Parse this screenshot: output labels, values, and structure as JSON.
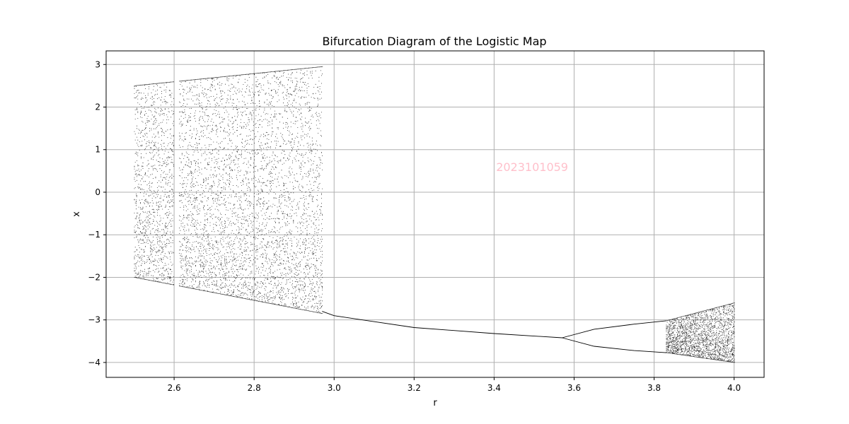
{
  "chart_data": {
    "type": "scatter",
    "title": "Bifurcation Diagram of the Logistic Map",
    "xlabel": "r",
    "ylabel": "x",
    "xlim": [
      2.43,
      4.075
    ],
    "ylim": [
      -4.35,
      3.32
    ],
    "grid": true,
    "x_ticks": [
      2.6,
      2.8,
      3.0,
      3.2,
      3.4,
      3.6,
      3.8,
      4.0
    ],
    "x_tick_labels": [
      "2.6",
      "2.8",
      "3.0",
      "3.2",
      "3.4",
      "3.6",
      "3.8",
      "4.0"
    ],
    "y_ticks": [
      3,
      2,
      1,
      0,
      -1,
      -2,
      -3,
      -4
    ],
    "y_tick_labels": [
      "3",
      "2",
      "1",
      "0",
      "−1",
      "−2",
      "−3",
      "−4"
    ],
    "marker_color": "#000000",
    "watermark": {
      "text": "2023101059",
      "color": "#ffc0cb",
      "x": 3.495,
      "y": 0.6
    },
    "series": [
      {
        "region": "chaotic band",
        "r_range": [
          2.5,
          2.97
        ],
        "upper_edge": [
          [
            2.5,
            2.5
          ],
          [
            2.97,
            2.95
          ]
        ],
        "lower_edge": [
          [
            2.5,
            -2.0
          ],
          [
            2.97,
            -2.85
          ]
        ],
        "window_gap": [
          2.598,
          2.612
        ],
        "appearance": "dense scattered points"
      },
      {
        "region": "single branch",
        "points": [
          [
            2.97,
            -2.8
          ],
          [
            3.0,
            -2.9
          ],
          [
            3.2,
            -3.18
          ],
          [
            3.4,
            -3.32
          ],
          [
            3.57,
            -3.42
          ]
        ]
      },
      {
        "region": "period-2 upper branch",
        "points": [
          [
            3.57,
            -3.42
          ],
          [
            3.65,
            -3.22
          ],
          [
            3.75,
            -3.1
          ],
          [
            3.83,
            -3.02
          ]
        ]
      },
      {
        "region": "period-2 lower branch",
        "points": [
          [
            3.57,
            -3.42
          ],
          [
            3.65,
            -3.62
          ],
          [
            3.75,
            -3.72
          ],
          [
            3.83,
            -3.77
          ]
        ]
      },
      {
        "region": "chaotic onset",
        "r_range": [
          3.83,
          4.0
        ],
        "upper_edge": [
          [
            3.83,
            -3.02
          ],
          [
            4.0,
            -2.6
          ]
        ],
        "lower_edge": [
          [
            3.83,
            -3.77
          ],
          [
            4.0,
            -4.0
          ]
        ],
        "appearance": "dense scattered points"
      }
    ]
  }
}
